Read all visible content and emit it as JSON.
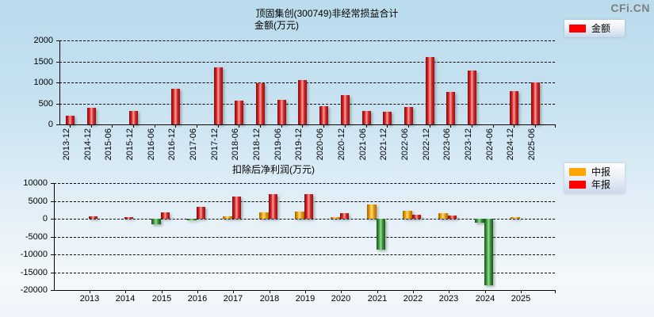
{
  "brand": "CFi.CN",
  "chart_data": [
    {
      "type": "bar",
      "title": "顶固集创(300749)非经常损益合计",
      "subtitle": "金额(万元)",
      "categories": [
        "2013-12",
        "2014-12",
        "2015-06",
        "2015-12",
        "2016-06",
        "2016-12",
        "2017-06",
        "2017-12",
        "2018-06",
        "2018-12",
        "2019-06",
        "2019-12",
        "2020-06",
        "2020-12",
        "2021-06",
        "2021-12",
        "2022-06",
        "2022-12",
        "2023-06",
        "2023-12",
        "2024-06",
        "2024-12",
        "2025-06"
      ],
      "series": [
        {
          "name": "金额",
          "color": "#ff0000",
          "values": [
            210,
            390,
            0,
            330,
            0,
            840,
            0,
            1360,
            560,
            980,
            580,
            1050,
            430,
            700,
            330,
            300,
            420,
            1610,
            780,
            1280,
            0,
            800,
            1000
          ]
        }
      ],
      "ylim": [
        0,
        2000
      ],
      "yticks": [
        0,
        500,
        1000,
        1500,
        2000
      ],
      "grid": "dashed-horizontal",
      "legend_position": "top-right"
    },
    {
      "type": "bar",
      "title": "扣除后净利润(万元)",
      "categories": [
        "2013",
        "2014",
        "2015",
        "2016",
        "2017",
        "2018",
        "2019",
        "2020",
        "2021",
        "2022",
        "2023",
        "2024",
        "2025"
      ],
      "series": [
        {
          "name": "中报",
          "color": "#ffa500",
          "values": [
            null,
            null,
            -1600,
            -300,
            700,
            1800,
            2100,
            300,
            3900,
            2200,
            1600,
            -1000,
            300
          ]
        },
        {
          "name": "年报",
          "color": "#ff0000",
          "values": [
            600,
            250,
            1800,
            3300,
            6200,
            6900,
            6800,
            1500,
            -8600,
            1100,
            900,
            -18600,
            null
          ]
        }
      ],
      "negative_color": "#2e8b2e",
      "ylim": [
        -20000,
        10000
      ],
      "yticks": [
        10000,
        5000,
        0,
        -5000,
        -10000,
        -15000,
        -20000
      ],
      "grid": "dashed-horizontal",
      "legend_position": "top-right"
    }
  ]
}
